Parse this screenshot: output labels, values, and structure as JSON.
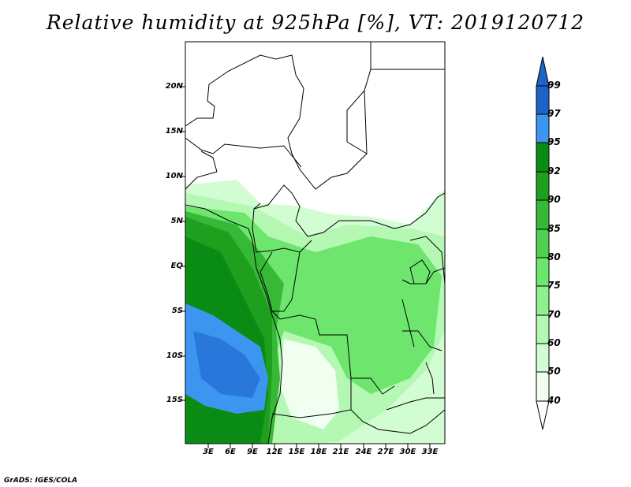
{
  "title": "Relative humidity at 925hPa [%], VT: 2019120712",
  "credit": "GrADS: IGES/COLA",
  "lat_ticks": [
    "20N",
    "15N",
    "10N",
    "5N",
    "EQ",
    "5S",
    "10S",
    "15S"
  ],
  "lon_ticks": [
    "3E",
    "6E",
    "9E",
    "12E",
    "15E",
    "18E",
    "21E",
    "24E",
    "27E",
    "30E",
    "33E"
  ],
  "colorbar": {
    "levels": [
      "99",
      "97",
      "95",
      "92",
      "90",
      "85",
      "80",
      "75",
      "70",
      "60",
      "50",
      "40"
    ],
    "colors": [
      "#1e64c8",
      "#2878dc",
      "#3c96f0",
      "#0a8c14",
      "#1ea01e",
      "#37b837",
      "#50d050",
      "#6ee66e",
      "#8ef08e",
      "#b4f8b4",
      "#d2fcd2",
      "#f0fff0"
    ]
  }
}
